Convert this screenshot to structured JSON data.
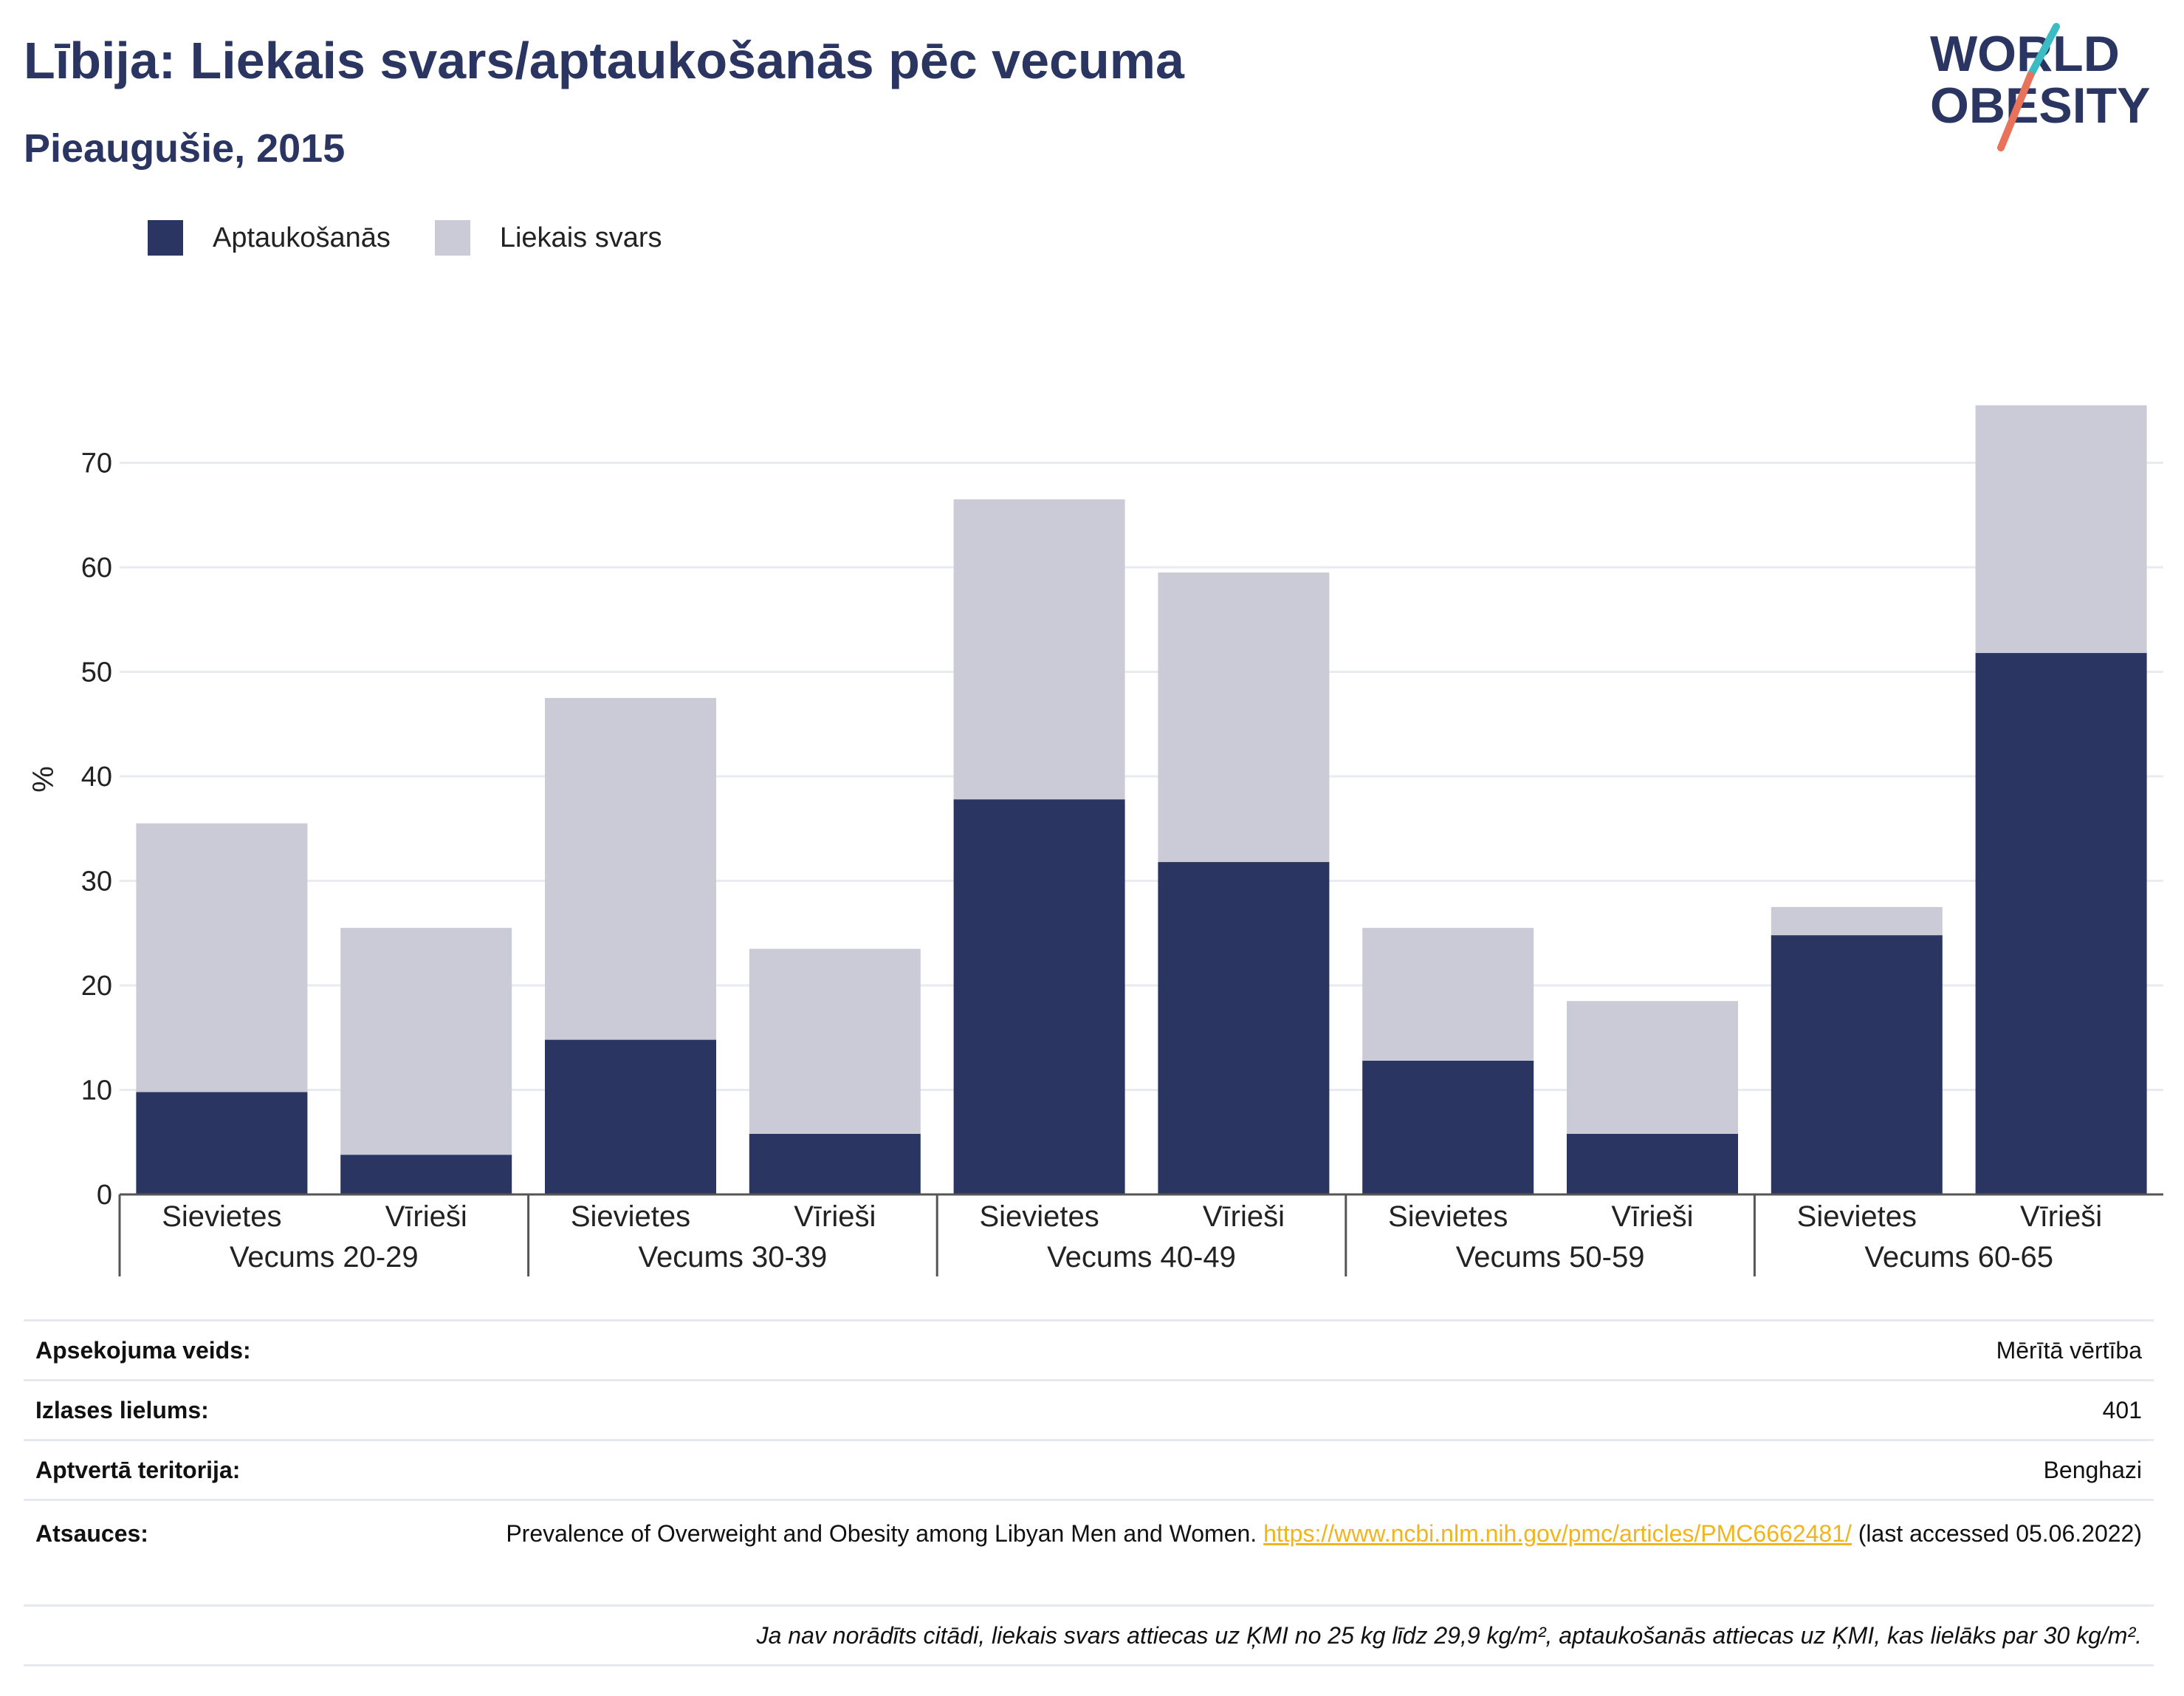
{
  "header": {
    "title": "Lībija: Liekais svars/aptaukošanās pēc vecuma",
    "subtitle": "Pieaugušie, 2015"
  },
  "logo": {
    "line1": "WORLD",
    "line2": "OBESITY",
    "colors": {
      "text": "#2a3561",
      "slash_teal": "#3bbcc4",
      "slash_coral": "#e8735a"
    }
  },
  "legend": {
    "obesity_label": "Aptaukošanās",
    "overweight_label": "Liekais svars"
  },
  "colors": {
    "obesity": "#2a3561",
    "overweight": "#cacbd6",
    "grid": "#e9ebf0",
    "axis": "#555555"
  },
  "chart_data": {
    "type": "bar",
    "stacked": true,
    "ylabel": "%",
    "ylim": [
      0,
      75
    ],
    "yticks": [
      0,
      10,
      20,
      30,
      40,
      50,
      60,
      70
    ],
    "grid": true,
    "legend_position": "top-left",
    "groups": [
      "Vecums 20-29",
      "Vecums 30-39",
      "Vecums 40-49",
      "Vecums 50-59",
      "Vecums 60-65"
    ],
    "subcategories": [
      "Sievietes",
      "Vīrieši"
    ],
    "series": [
      {
        "name": "Aptaukošanās",
        "values": [
          9.8,
          3.8,
          14.8,
          5.8,
          37.8,
          31.8,
          12.8,
          5.8,
          24.8,
          51.8
        ]
      },
      {
        "name": "Liekais svars",
        "values": [
          25.7,
          21.7,
          32.7,
          17.7,
          28.7,
          27.7,
          12.7,
          12.7,
          2.7,
          23.7
        ]
      }
    ]
  },
  "info": {
    "rows": [
      {
        "key": "Apsekojuma veids:",
        "value": "Mērītā vērtība"
      },
      {
        "key": "Izlases lielums:",
        "value": "401"
      },
      {
        "key": "Aptvertā teritorija:",
        "value": "Benghazi"
      }
    ],
    "sources": {
      "key": "Atsauces:",
      "text_before": "Prevalence of Overweight and Obesity among Libyan Men and Women.",
      "url": "https://www.ncbi.nlm.nih.gov/pmc/articles/PMC6662481/",
      "text_after": "(last accessed 05.06.2022)"
    },
    "note": "Ja nav norādīts citādi, liekais svars attiecas uz ĶMI no 25 kg līdz 29,9 kg/m², aptaukošanās attiecas uz ĶMI, kas lielāks par 30 kg/m²."
  }
}
